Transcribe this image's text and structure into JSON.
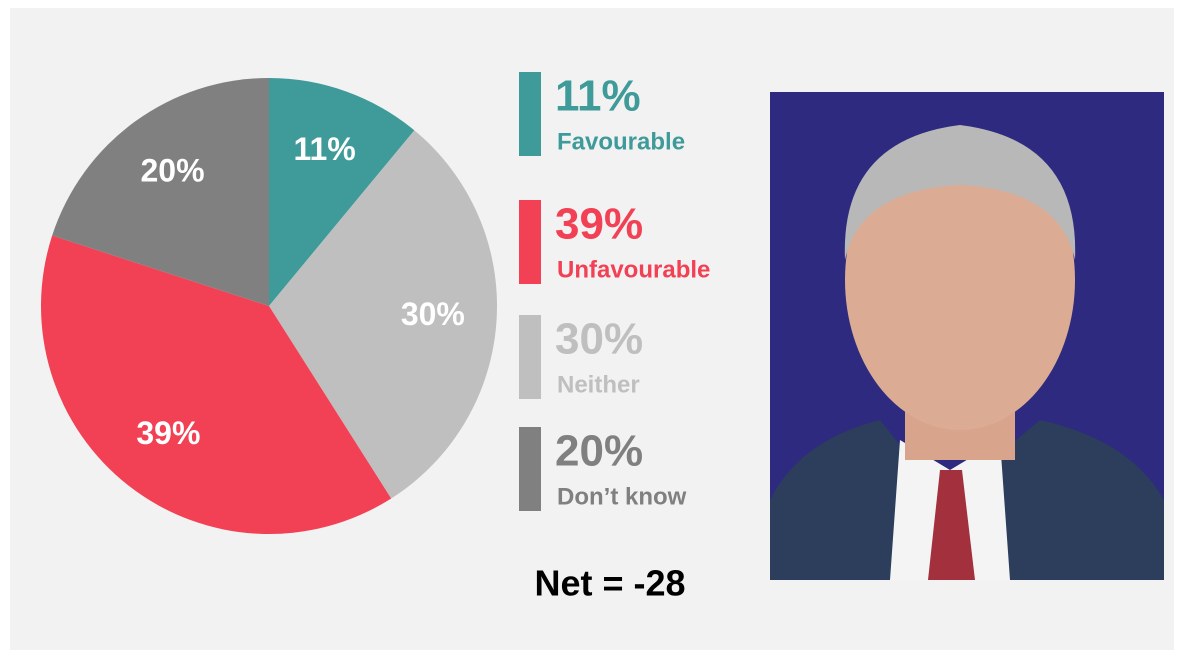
{
  "chart_data": {
    "type": "pie",
    "categories": [
      "Favourable",
      "Unfavourable",
      "Neither",
      "Don’t know"
    ],
    "values": [
      11,
      39,
      30,
      20
    ],
    "value_labels": [
      "11%",
      "39%",
      "30%",
      "20%"
    ],
    "colors": [
      "#3f9a9a",
      "#f24054",
      "#bfbfbf",
      "#808080"
    ],
    "annotation": "Net = -28"
  }
}
